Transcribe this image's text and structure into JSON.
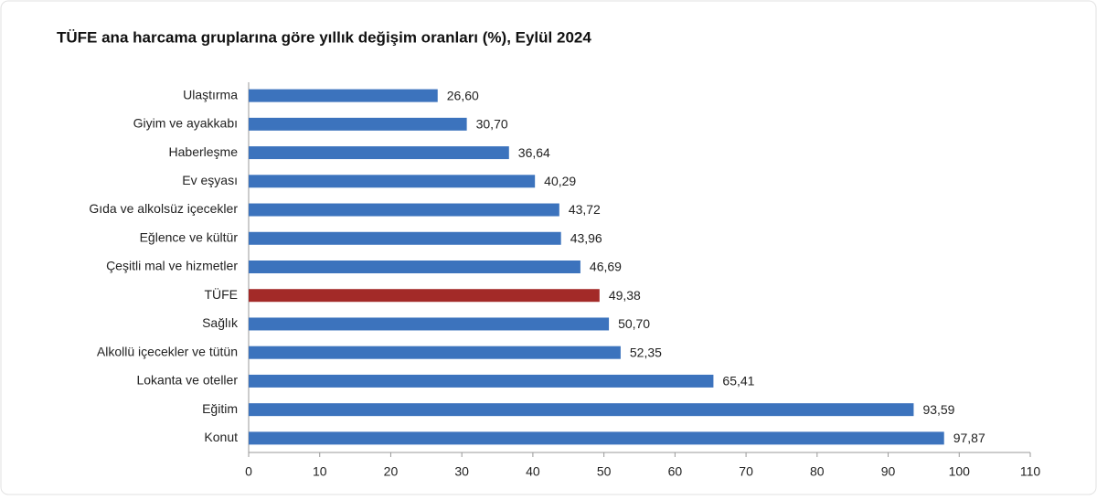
{
  "chart_data": {
    "type": "bar",
    "orientation": "horizontal",
    "title": "TÜFE ana harcama gruplarına göre yıllık değişim oranları (%), Eylül 2024",
    "categories": [
      "Ulaştırma",
      "Giyim ve ayakkabı",
      "Haberleşme",
      "Ev eşyası",
      "Gıda ve alkolsüz içecekler",
      "Eğlence ve kültür",
      "Çeşitli mal ve hizmetler",
      "TÜFE",
      "Sağlık",
      "Alkollü içecekler ve tütün",
      "Lokanta ve oteller",
      "Eğitim",
      "Konut"
    ],
    "values": [
      26.6,
      30.7,
      36.64,
      40.29,
      43.72,
      43.96,
      46.69,
      49.38,
      50.7,
      52.35,
      65.41,
      93.59,
      97.87
    ],
    "value_labels": [
      "26,60",
      "30,70",
      "36,64",
      "40,29",
      "43,72",
      "43,96",
      "46,69",
      "49,38",
      "50,70",
      "52,35",
      "65,41",
      "93,59",
      "97,87"
    ],
    "colors": [
      "#3c73bd",
      "#3c73bd",
      "#3c73bd",
      "#3c73bd",
      "#3c73bd",
      "#3c73bd",
      "#3c73bd",
      "#a32a28",
      "#3c73bd",
      "#3c73bd",
      "#3c73bd",
      "#3c73bd",
      "#3c73bd"
    ],
    "xlim": [
      0,
      110
    ],
    "xticks": [
      0,
      10,
      20,
      30,
      40,
      50,
      60,
      70,
      80,
      90,
      100,
      110
    ],
    "grid": false
  }
}
